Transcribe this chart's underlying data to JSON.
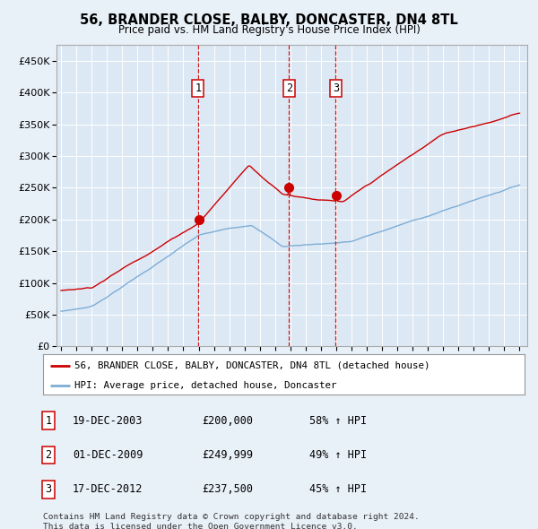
{
  "title": "56, BRANDER CLOSE, BALBY, DONCASTER, DN4 8TL",
  "subtitle": "Price paid vs. HM Land Registry's House Price Index (HPI)",
  "background_color": "#e8f0f8",
  "plot_bg_color": "#dde8f5",
  "red_color": "#cc0000",
  "blue_color": "#7dadd4",
  "vline_color": "#cc0000",
  "grid_color": "#ffffff",
  "ylim": [
    0,
    475000
  ],
  "yticks": [
    0,
    50000,
    100000,
    150000,
    200000,
    250000,
    300000,
    350000,
    400000,
    450000
  ],
  "sales": [
    {
      "date_num": 2003.96,
      "price": 200000,
      "label": "1"
    },
    {
      "date_num": 2009.92,
      "price": 249999,
      "label": "2"
    },
    {
      "date_num": 2012.96,
      "price": 237500,
      "label": "3"
    }
  ],
  "sale_dates": [
    "19-DEC-2003",
    "01-DEC-2009",
    "17-DEC-2012"
  ],
  "sale_prices": [
    "£200,000",
    "£249,999",
    "£237,500"
  ],
  "sale_pcts": [
    "58% ↑ HPI",
    "49% ↑ HPI",
    "45% ↑ HPI"
  ],
  "legend_line1": "56, BRANDER CLOSE, BALBY, DONCASTER, DN4 8TL (detached house)",
  "legend_line2": "HPI: Average price, detached house, Doncaster",
  "footnote1": "Contains HM Land Registry data © Crown copyright and database right 2024.",
  "footnote2": "This data is licensed under the Open Government Licence v3.0."
}
